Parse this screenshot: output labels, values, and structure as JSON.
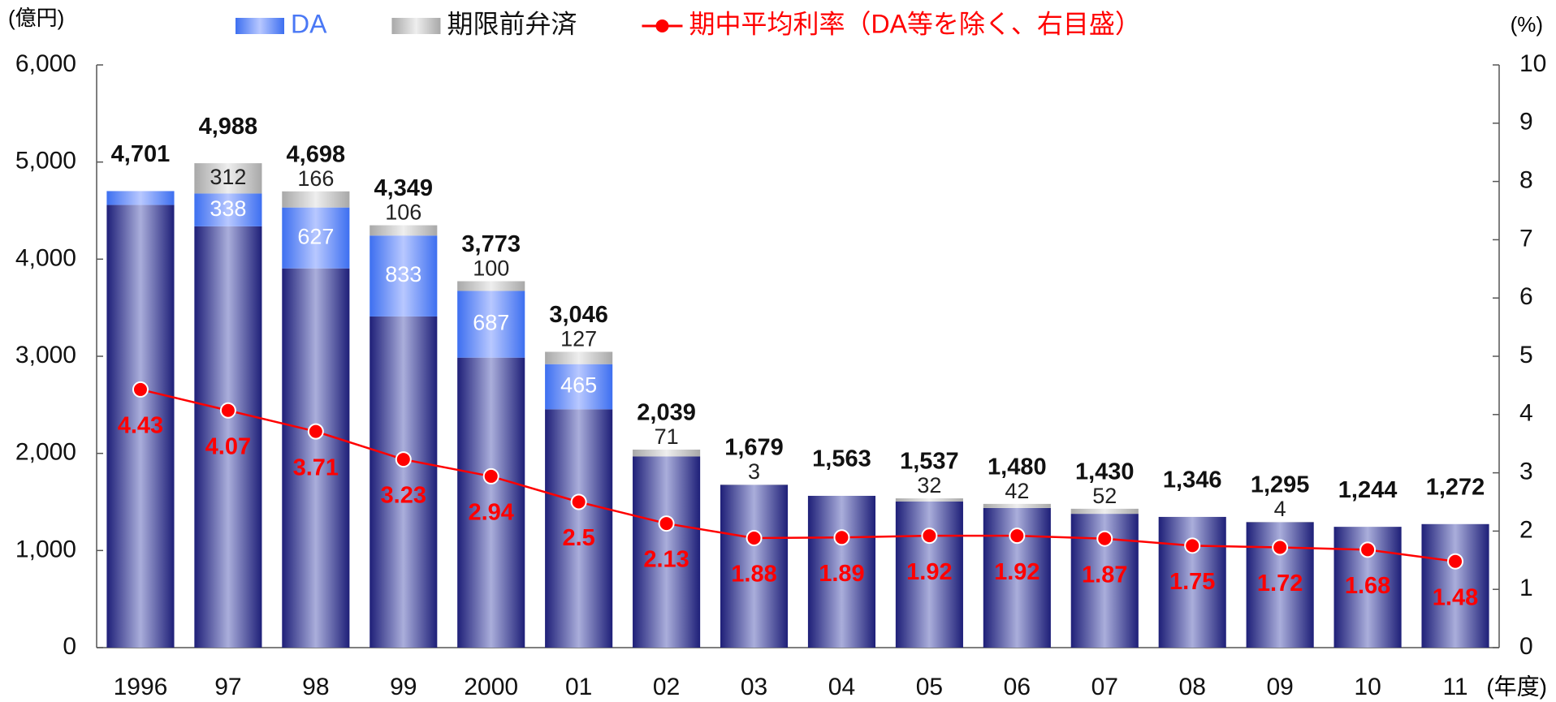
{
  "chart_data": {
    "type": "bar",
    "stacked": true,
    "y_label": "(億円)",
    "y2_label": "(%)",
    "x_label": "(年度)",
    "categories": [
      "1996",
      "97",
      "98",
      "99",
      "2000",
      "01",
      "02",
      "03",
      "04",
      "05",
      "06",
      "07",
      "08",
      "09",
      "10",
      "11"
    ],
    "series": [
      {
        "color": "#1e1f78",
        "values": [
          4558,
          4338,
          3905,
          3410,
          2986,
          2454,
          1968,
          1676,
          1563,
          1505,
          1438,
          1378,
          1346,
          1291,
          1244,
          1272
        ]
      },
      {
        "name": "DA",
        "color": "#4a78f5",
        "values": [
          143,
          338,
          627,
          833,
          687,
          465,
          null,
          null,
          null,
          null,
          null,
          null,
          null,
          null,
          null,
          null
        ]
      },
      {
        "name": "期限前弁済",
        "color": "#c8c8c8",
        "values": [
          null,
          312,
          166,
          106,
          100,
          127,
          71,
          3,
          null,
          32,
          42,
          52,
          null,
          4,
          null,
          null
        ]
      },
      {
        "name": "期中平均利率（DA等を除く、右目盛）",
        "type": "line",
        "axis": "y2",
        "color": "#ff0000",
        "values": [
          4.43,
          4.07,
          3.71,
          3.23,
          2.94,
          2.5,
          2.13,
          1.88,
          1.89,
          1.92,
          1.92,
          1.87,
          1.75,
          1.72,
          1.68,
          1.48
        ]
      }
    ],
    "total_labels": [
      "4,701",
      "4,988",
      "4,698",
      "4,349",
      "3,773",
      "3,046",
      "2,039",
      "1,679",
      "1,563",
      "1,537",
      "1,480",
      "1,430",
      "1,346",
      "1,295",
      "1,244",
      "1,272"
    ],
    "ylim": [
      0,
      6000
    ],
    "yticks": [
      0,
      {
        "value": 1000,
        "label": "1,000"
      },
      {
        "value": 2000,
        "label": "2,000"
      },
      {
        "value": 3000,
        "label": "3,000"
      },
      {
        "value": 4000,
        "label": "4,000"
      },
      {
        "value": 5000,
        "label": "5,000"
      },
      {
        "value": 6000,
        "label": "6,000"
      }
    ],
    "y2lim": [
      0,
      10
    ],
    "y2ticks": [
      0,
      1,
      2,
      3,
      4,
      5,
      6,
      7,
      8,
      9,
      10
    ],
    "legend": "top"
  }
}
